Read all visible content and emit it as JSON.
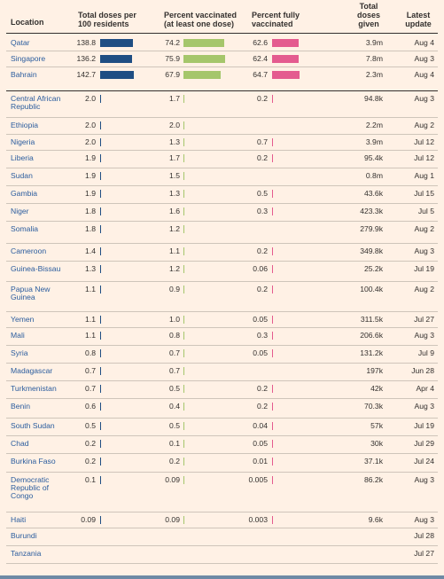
{
  "chart_data": {
    "type": "table",
    "columns": [
      "Location",
      "Total doses per 100 residents",
      "Percent vaccinated (at least one dose)",
      "Percent fully vaccinated",
      "Total doses given",
      "Latest update"
    ],
    "header": {
      "location": "Location",
      "total_doses": [
        "Total doses per",
        "100 residents"
      ],
      "pct_vacc": [
        "Percent vaccinated",
        "(at least one dose)"
      ],
      "pct_full": [
        "Percent fully",
        "vaccinated"
      ],
      "given": [
        "Total",
        "doses",
        "given"
      ],
      "update": [
        "Latest",
        "update"
      ]
    },
    "colors": {
      "total_doses": "#1f4e83",
      "pct_vacc": "#a5c66b",
      "pct_full": "#e45b8f"
    },
    "rows": [
      {
        "location": [
          "Qatar"
        ],
        "total_doses": "138.8",
        "total_doses_v": 138.8,
        "pct_vacc": "74.2",
        "pct_vacc_v": 74.2,
        "pct_full": "62.6",
        "pct_full_v": 62.6,
        "given": "3.9m",
        "update": "Aug 4"
      },
      {
        "location": [
          "Singapore"
        ],
        "total_doses": "136.2",
        "total_doses_v": 136.2,
        "pct_vacc": "75.9",
        "pct_vacc_v": 75.9,
        "pct_full": "62.4",
        "pct_full_v": 62.4,
        "given": "7.8m",
        "update": "Aug 3"
      },
      {
        "location": [
          "Bahrain"
        ],
        "total_doses": "142.7",
        "total_doses_v": 142.7,
        "pct_vacc": "67.9",
        "pct_vacc_v": 67.9,
        "pct_full": "64.7",
        "pct_full_v": 64.7,
        "given": "2.3m",
        "update": "Aug 4"
      },
      {
        "location": [
          "Central African",
          "Republic"
        ],
        "total_doses": "2.0",
        "total_doses_v": 2.0,
        "pct_vacc": "1.7",
        "pct_vacc_v": 1.7,
        "pct_full": "0.2",
        "pct_full_v": 0.2,
        "given": "94.8k",
        "update": "Aug 3"
      },
      {
        "location": [
          "Ethiopia"
        ],
        "total_doses": "2.0",
        "total_doses_v": 2.0,
        "pct_vacc": "2.0",
        "pct_vacc_v": 2.0,
        "pct_full": "",
        "pct_full_v": null,
        "given": "2.2m",
        "update": "Aug 2"
      },
      {
        "location": [
          "Nigeria"
        ],
        "total_doses": "2.0",
        "total_doses_v": 2.0,
        "pct_vacc": "1.3",
        "pct_vacc_v": 1.3,
        "pct_full": "0.7",
        "pct_full_v": 0.7,
        "given": "3.9m",
        "update": "Jul 12"
      },
      {
        "location": [
          "Liberia"
        ],
        "total_doses": "1.9",
        "total_doses_v": 1.9,
        "pct_vacc": "1.7",
        "pct_vacc_v": 1.7,
        "pct_full": "0.2",
        "pct_full_v": 0.2,
        "given": "95.4k",
        "update": "Jul 12"
      },
      {
        "location": [
          "Sudan"
        ],
        "total_doses": "1.9",
        "total_doses_v": 1.9,
        "pct_vacc": "1.5",
        "pct_vacc_v": 1.5,
        "pct_full": "",
        "pct_full_v": null,
        "given": "0.8m",
        "update": "Aug 1"
      },
      {
        "location": [
          "Gambia"
        ],
        "total_doses": "1.9",
        "total_doses_v": 1.9,
        "pct_vacc": "1.3",
        "pct_vacc_v": 1.3,
        "pct_full": "0.5",
        "pct_full_v": 0.5,
        "given": "43.6k",
        "update": "Jul 15"
      },
      {
        "location": [
          "Niger"
        ],
        "total_doses": "1.8",
        "total_doses_v": 1.8,
        "pct_vacc": "1.6",
        "pct_vacc_v": 1.6,
        "pct_full": "0.3",
        "pct_full_v": 0.3,
        "given": "423.3k",
        "update": "Jul 5"
      },
      {
        "location": [
          "Somalia"
        ],
        "total_doses": "1.8",
        "total_doses_v": 1.8,
        "pct_vacc": "1.2",
        "pct_vacc_v": 1.2,
        "pct_full": "",
        "pct_full_v": null,
        "given": "279.9k",
        "update": "Aug 2"
      },
      {
        "location": [
          "Cameroon"
        ],
        "total_doses": "1.4",
        "total_doses_v": 1.4,
        "pct_vacc": "1.1",
        "pct_vacc_v": 1.1,
        "pct_full": "0.2",
        "pct_full_v": 0.2,
        "given": "349.8k",
        "update": "Aug 3"
      },
      {
        "location": [
          "Guinea-Bissau"
        ],
        "total_doses": "1.3",
        "total_doses_v": 1.3,
        "pct_vacc": "1.2",
        "pct_vacc_v": 1.2,
        "pct_full": "0.06",
        "pct_full_v": 0.06,
        "given": "25.2k",
        "update": "Jul 19"
      },
      {
        "location": [
          "Papua New",
          "Guinea"
        ],
        "total_doses": "1.1",
        "total_doses_v": 1.1,
        "pct_vacc": "0.9",
        "pct_vacc_v": 0.9,
        "pct_full": "0.2",
        "pct_full_v": 0.2,
        "given": "100.4k",
        "update": "Aug 2"
      },
      {
        "location": [
          "Yemen"
        ],
        "total_doses": "1.1",
        "total_doses_v": 1.1,
        "pct_vacc": "1.0",
        "pct_vacc_v": 1.0,
        "pct_full": "0.05",
        "pct_full_v": 0.05,
        "given": "311.5k",
        "update": "Jul 27"
      },
      {
        "location": [
          "Mali"
        ],
        "total_doses": "1.1",
        "total_doses_v": 1.1,
        "pct_vacc": "0.8",
        "pct_vacc_v": 0.8,
        "pct_full": "0.3",
        "pct_full_v": 0.3,
        "given": "206.6k",
        "update": "Aug 3"
      },
      {
        "location": [
          "Syria"
        ],
        "total_doses": "0.8",
        "total_doses_v": 0.8,
        "pct_vacc": "0.7",
        "pct_vacc_v": 0.7,
        "pct_full": "0.05",
        "pct_full_v": 0.05,
        "given": "131.2k",
        "update": "Jul 9"
      },
      {
        "location": [
          "Madagascar"
        ],
        "total_doses": "0.7",
        "total_doses_v": 0.7,
        "pct_vacc": "0.7",
        "pct_vacc_v": 0.7,
        "pct_full": "",
        "pct_full_v": null,
        "given": "197k",
        "update": "Jun 28"
      },
      {
        "location": [
          "Turkmenistan"
        ],
        "total_doses": "0.7",
        "total_doses_v": 0.7,
        "pct_vacc": "0.5",
        "pct_vacc_v": 0.5,
        "pct_full": "0.2",
        "pct_full_v": 0.2,
        "given": "42k",
        "update": "Apr 4"
      },
      {
        "location": [
          "Benin"
        ],
        "total_doses": "0.6",
        "total_doses_v": 0.6,
        "pct_vacc": "0.4",
        "pct_vacc_v": 0.4,
        "pct_full": "0.2",
        "pct_full_v": 0.2,
        "given": "70.3k",
        "update": "Aug 3"
      },
      {
        "location": [
          "South Sudan"
        ],
        "total_doses": "0.5",
        "total_doses_v": 0.5,
        "pct_vacc": "0.5",
        "pct_vacc_v": 0.5,
        "pct_full": "0.04",
        "pct_full_v": 0.04,
        "given": "57k",
        "update": "Jul 19"
      },
      {
        "location": [
          "Chad"
        ],
        "total_doses": "0.2",
        "total_doses_v": 0.2,
        "pct_vacc": "0.1",
        "pct_vacc_v": 0.1,
        "pct_full": "0.05",
        "pct_full_v": 0.05,
        "given": "30k",
        "update": "Jul 29"
      },
      {
        "location": [
          "Burkina Faso"
        ],
        "total_doses": "0.2",
        "total_doses_v": 0.2,
        "pct_vacc": "0.2",
        "pct_vacc_v": 0.2,
        "pct_full": "0.01",
        "pct_full_v": 0.01,
        "given": "37.1k",
        "update": "Jul 24"
      },
      {
        "location": [
          "Democratic",
          "Republic of",
          "Congo"
        ],
        "total_doses": "0.1",
        "total_doses_v": 0.1,
        "pct_vacc": "0.09",
        "pct_vacc_v": 0.09,
        "pct_full": "0.005",
        "pct_full_v": 0.005,
        "given": "86.2k",
        "update": "Aug 3"
      },
      {
        "location": [
          "Haiti"
        ],
        "total_doses": "0.09",
        "total_doses_v": 0.09,
        "pct_vacc": "0.09",
        "pct_vacc_v": 0.09,
        "pct_full": "0.003",
        "pct_full_v": 0.003,
        "given": "9.6k",
        "update": "Aug 3"
      },
      {
        "location": [
          "Burundi"
        ],
        "total_doses": "",
        "total_doses_v": null,
        "pct_vacc": "",
        "pct_vacc_v": null,
        "pct_full": "",
        "pct_full_v": null,
        "given": "",
        "update": "Jul 28"
      },
      {
        "location": [
          "Tanzania"
        ],
        "total_doses": "",
        "total_doses_v": null,
        "pct_vacc": "",
        "pct_vacc_v": null,
        "pct_full": "",
        "pct_full_v": null,
        "given": "",
        "update": "Jul 27"
      }
    ]
  }
}
